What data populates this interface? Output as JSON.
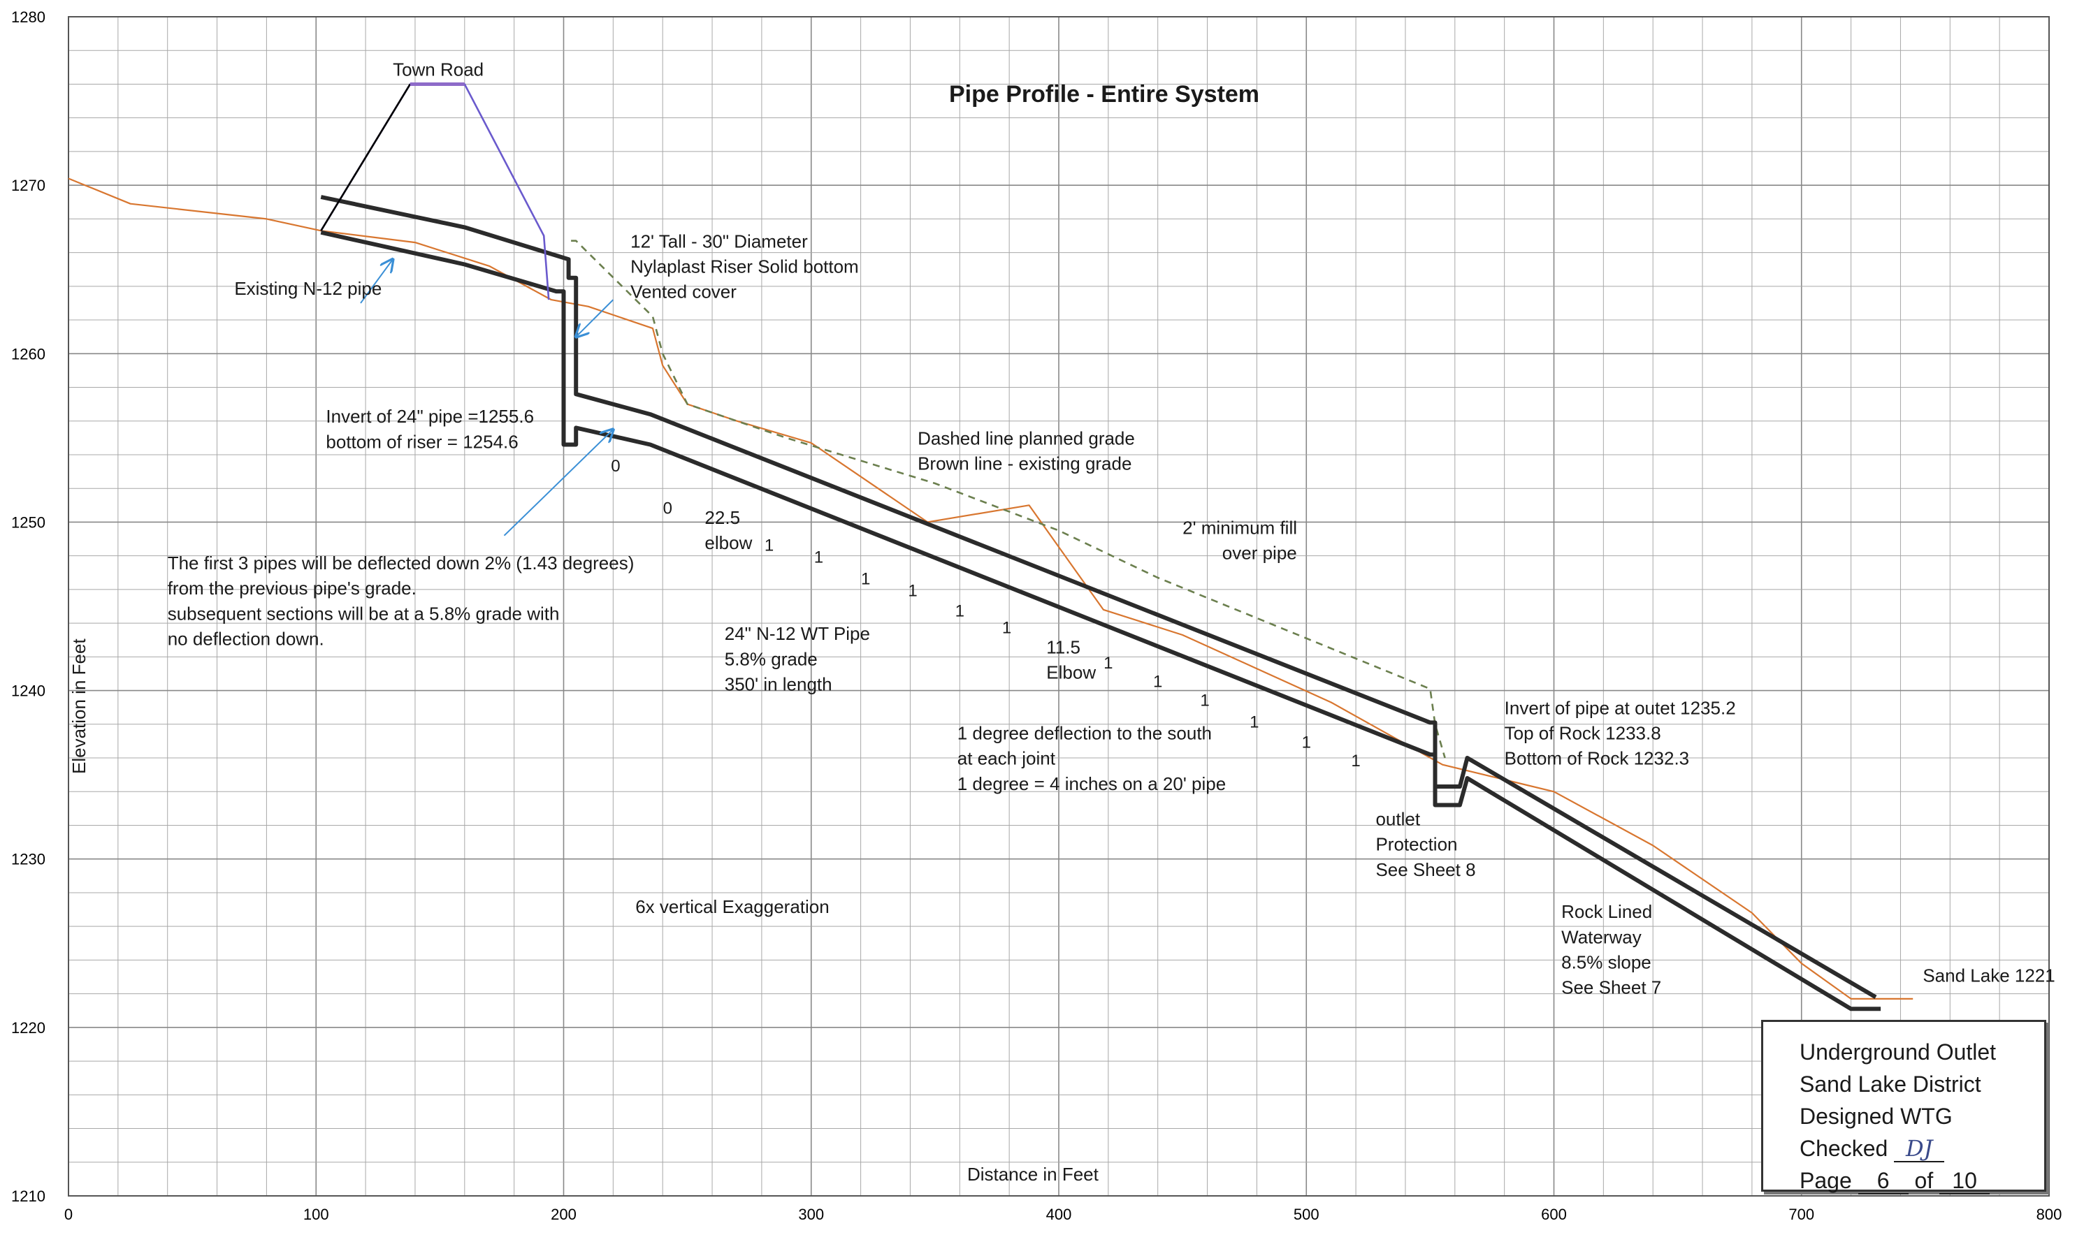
{
  "title": "Pipe Profile - Entire System",
  "xlabel": "Distance in Feet",
  "ylabel": "Elevation in Feet",
  "x_ticks": [
    "0",
    "100",
    "200",
    "300",
    "400",
    "500",
    "600",
    "700",
    "800"
  ],
  "y_ticks": [
    "1210",
    "1220",
    "1230",
    "1240",
    "1250",
    "1260",
    "1270",
    "1280"
  ],
  "colors": {
    "pipe": "#2b2b2b",
    "existing_grade": "#d8762f",
    "planned_grade": "#6b7f4e",
    "road_slope": "#6a5acd",
    "road_top": "#8e6bc9",
    "arrow": "#3a8fd6",
    "grid": "#a8a8a8"
  },
  "chart_data": {
    "type": "profile",
    "xlim": [
      0,
      800
    ],
    "ylim": [
      1210,
      1280
    ],
    "grid": "on, 20 ft by 2 ft",
    "series": [
      {
        "style": "existing grade (brown)",
        "x": [
          0,
          25,
          80,
          102,
          140,
          170,
          195,
          210,
          236,
          240,
          250,
          270,
          300,
          347,
          388,
          418,
          450,
          480,
          510,
          555,
          600,
          640,
          680,
          700,
          720,
          745
        ],
        "y": [
          1270.4,
          1268.9,
          1268,
          1267.3,
          1266.6,
          1265.2,
          1263.2,
          1262.8,
          1261.5,
          1259.3,
          1257,
          1256,
          1254.7,
          1250,
          1251,
          1244.8,
          1243.3,
          1241.3,
          1239.3,
          1235.6,
          1234,
          1230.8,
          1226.8,
          1223.8,
          1221.7,
          1221.7
        ]
      },
      {
        "style": "planned grade (dashed)",
        "x": [
          203,
          205,
          236,
          240,
          250,
          290,
          350,
          400,
          440,
          490,
          550,
          552,
          556
        ],
        "y": [
          1266.7,
          1266.7,
          1262.2,
          1260,
          1257,
          1255,
          1252.3,
          1249.5,
          1246.7,
          1243.7,
          1240.1,
          1238,
          1236
        ]
      },
      {
        "style": "pipe crown",
        "x": [
          102,
          160,
          202,
          202,
          205,
          205,
          235,
          550,
          552,
          552,
          562,
          565,
          730
        ],
        "y": [
          1269.3,
          1267.5,
          1265.6,
          1264.5,
          1264.5,
          1257.6,
          1256.4,
          1238.1,
          1238.1,
          1234.3,
          1234.3,
          1236,
          1221.8
        ]
      },
      {
        "style": "pipe invert",
        "x": [
          102,
          160,
          197,
          198,
          200,
          200,
          205,
          205,
          235,
          550,
          552,
          552,
          562,
          565,
          720,
          732
        ],
        "y": [
          1267.2,
          1265.3,
          1263.7,
          1263.7,
          1263.7,
          1254.6,
          1254.6,
          1255.6,
          1254.6,
          1236.2,
          1236.2,
          1233.2,
          1233.2,
          1234.8,
          1221.1,
          1221.1
        ]
      },
      {
        "style": "town road",
        "x": [
          102,
          138,
          160,
          192,
          194
        ],
        "y": [
          1267.3,
          1276,
          1276,
          1267,
          1263.2
        ]
      }
    ],
    "annotations": [
      {
        "text": "Town Road"
      },
      {
        "text": "Existing N-12 pipe"
      },
      {
        "text": "12' Tall - 30\" Diameter"
      },
      {
        "text": "Nylaplast Riser  Solid bottom"
      },
      {
        "text": "Vented cover"
      },
      {
        "text": "Invert of 24\" pipe =1255.6"
      },
      {
        "text": "bottom of riser = 1254.6"
      },
      {
        "text": "Dashed line  planned grade"
      },
      {
        "text": "Brown line  - existing grade"
      },
      {
        "text": "2' minimum fill"
      },
      {
        "text": "over pipe"
      },
      {
        "text": "The first 3 pipes will be deflected down 2% (1.43 degrees)"
      },
      {
        "text": " from the previous pipe's grade."
      },
      {
        "text": "subsequent sections will be at a 5.8% grade with"
      },
      {
        "text": "no deflection down."
      },
      {
        "text": "22.5"
      },
      {
        "text": "elbow"
      },
      {
        "text": "24\" N-12 WT Pipe"
      },
      {
        "text": "5.8% grade"
      },
      {
        "text": "350' in length"
      },
      {
        "text": "11.5"
      },
      {
        "text": "Elbow"
      },
      {
        "text": "1 degree deflection to the south"
      },
      {
        "text": "at each joint"
      },
      {
        "text": "1 degree = 4 inches on a 20' pipe"
      },
      {
        "text": "Invert of pipe at outet  1235.2"
      },
      {
        "text": "Top of Rock 1233.8"
      },
      {
        "text": "Bottom of Rock 1232.3"
      },
      {
        "text": "outlet"
      },
      {
        "text": "Protection"
      },
      {
        "text": "See Sheet 8"
      },
      {
        "text": "Rock Lined"
      },
      {
        "text": "Waterway"
      },
      {
        "text": "8.5% slope"
      },
      {
        "text": "See Sheet  7"
      },
      {
        "text": "Sand Lake 1221"
      },
      {
        "text": "6x vertical Exaggeration"
      }
    ],
    "joint_labels": [
      {
        "text": "0",
        "x": 221,
        "y": 1253
      },
      {
        "text": "0",
        "x": 242,
        "y": 1250.5
      },
      {
        "text": "1",
        "x": 283,
        "y": 1248.3
      },
      {
        "text": "1",
        "x": 303,
        "y": 1247.6
      },
      {
        "text": "1",
        "x": 322,
        "y": 1246.3
      },
      {
        "text": "1",
        "x": 341,
        "y": 1245.6
      },
      {
        "text": "1",
        "x": 360,
        "y": 1244.4
      },
      {
        "text": "1",
        "x": 379,
        "y": 1243.4
      },
      {
        "text": "1",
        "x": 420,
        "y": 1241.3
      },
      {
        "text": "1",
        "x": 440,
        "y": 1240.2
      },
      {
        "text": "1",
        "x": 459,
        "y": 1239.1
      },
      {
        "text": "1",
        "x": 479,
        "y": 1237.8
      },
      {
        "text": "1",
        "x": 500,
        "y": 1236.6
      },
      {
        "text": "1",
        "x": 520,
        "y": 1235.5
      }
    ]
  },
  "title_block": {
    "line1": "Underground Outlet",
    "line2": "Sand Lake District",
    "line3": "Designed WTG",
    "checked_label": "Checked",
    "checked_value": "DJ",
    "page_label": "Page",
    "page_value": "6",
    "of_label": "of",
    "total_value": "10"
  }
}
